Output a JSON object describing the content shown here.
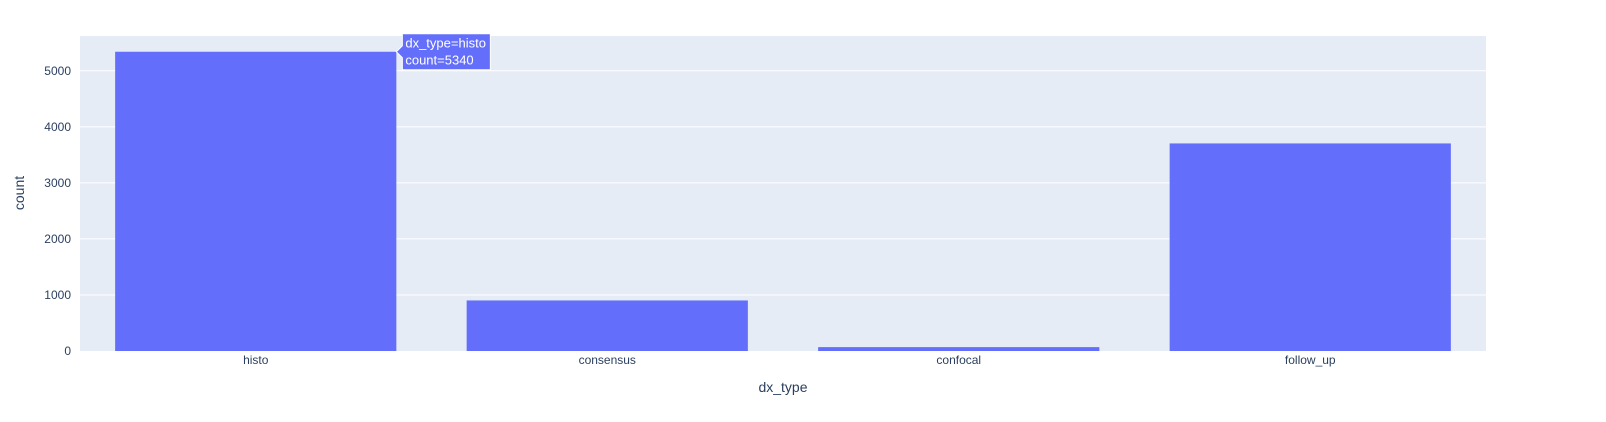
{
  "chart_data": {
    "type": "bar",
    "categories": [
      "histo",
      "consensus",
      "confocal",
      "follow_up"
    ],
    "values": [
      5340,
      902,
      69,
      3704
    ],
    "xlabel": "dx_type",
    "ylabel": "count",
    "ylim": [
      0,
      5621
    ],
    "yticks": [
      0,
      1000,
      2000,
      3000,
      4000,
      5000
    ],
    "grid": true,
    "legend": "none"
  },
  "tooltip": {
    "line1": "dx_type=histo",
    "line2": "count=5340"
  },
  "colors": {
    "plot_bg": "#e5ecf6",
    "bar": "#636efa",
    "grid": "#ffffff",
    "text": "#2a3f5f"
  }
}
